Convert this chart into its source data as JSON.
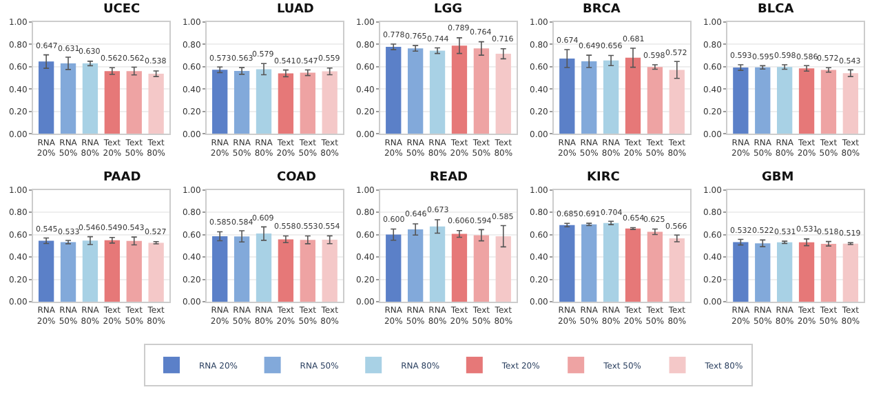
{
  "chart_data": [
    {
      "type": "bar",
      "title": "UCEC",
      "categories": [
        "RNA 20%",
        "RNA 50%",
        "RNA 80%",
        "Text 20%",
        "Text 50%",
        "Text 80%"
      ],
      "ylim": [
        0,
        1
      ],
      "yticks": [
        {
          "value": 0,
          "label": "0.00"
        },
        {
          "value": 0.2,
          "label": "0.20"
        },
        {
          "value": 0.4,
          "label": "0.40"
        },
        {
          "value": 0.6,
          "label": "0.60"
        },
        {
          "value": 0.8,
          "label": "0.80"
        },
        {
          "value": 1,
          "label": "1.00"
        }
      ],
      "grid": "y",
      "legend": "bottom",
      "series": [
        {
          "name": "RNA 20%",
          "color": "#5b80c8",
          "values": [
            0.647,
            null,
            null,
            null,
            null,
            null
          ],
          "errors": [
            0.06,
            null,
            null,
            null,
            null,
            null
          ],
          "value_labels": [
            "0.647",
            null,
            null,
            null,
            null,
            null
          ]
        },
        {
          "name": "RNA 50%",
          "color": "#82a9da",
          "values": [
            null,
            0.631,
            null,
            null,
            null,
            null
          ],
          "errors": [
            null,
            0.055,
            null,
            null,
            null,
            null
          ],
          "value_labels": [
            null,
            "0.631",
            null,
            null,
            null,
            null
          ]
        },
        {
          "name": "RNA 80%",
          "color": "#a8d1e5",
          "values": [
            null,
            null,
            0.63,
            null,
            null,
            null
          ],
          "errors": [
            null,
            null,
            0.02,
            null,
            null,
            null
          ],
          "value_labels": [
            null,
            null,
            "0.630",
            null,
            null,
            null
          ]
        },
        {
          "name": "Text 20%",
          "color": "#e67878",
          "values": [
            null,
            null,
            null,
            0.562,
            null,
            null
          ],
          "errors": [
            null,
            null,
            null,
            0.03,
            null,
            null
          ],
          "value_labels": [
            null,
            null,
            null,
            "0.562",
            null,
            null
          ]
        },
        {
          "name": "Text 50%",
          "color": "#eea3a3",
          "values": [
            null,
            null,
            null,
            null,
            0.562,
            null
          ],
          "errors": [
            null,
            null,
            null,
            null,
            0.035,
            null
          ],
          "value_labels": [
            null,
            null,
            null,
            null,
            "0.562",
            null
          ]
        },
        {
          "name": "Text 80%",
          "color": "#f4c8c8",
          "values": [
            null,
            null,
            null,
            null,
            null,
            0.538
          ],
          "errors": [
            null,
            null,
            null,
            null,
            null,
            0.025
          ],
          "value_labels": [
            null,
            null,
            null,
            null,
            null,
            "0.538"
          ]
        }
      ]
    },
    {
      "type": "bar",
      "title": "LUAD",
      "categories": [
        "RNA 20%",
        "RNA 50%",
        "RNA 80%",
        "Text 20%",
        "Text 50%",
        "Text 80%"
      ],
      "ylim": [
        0,
        1
      ],
      "yticks": [
        {
          "value": 0,
          "label": "0.00"
        },
        {
          "value": 0.2,
          "label": "0.20"
        },
        {
          "value": 0.4,
          "label": "0.40"
        },
        {
          "value": 0.6,
          "label": "0.60"
        },
        {
          "value": 0.8,
          "label": "0.80"
        },
        {
          "value": 1,
          "label": "1.00"
        }
      ],
      "grid": "y",
      "series": [
        {
          "color": "#5b80c8",
          "values": [
            0.573,
            null,
            null,
            null,
            null,
            null
          ],
          "errors": [
            0.025,
            null,
            null,
            null,
            null,
            null
          ],
          "value_labels": [
            "0.573",
            null,
            null,
            null,
            null,
            null
          ]
        },
        {
          "color": "#82a9da",
          "values": [
            null,
            0.563,
            null,
            null,
            null,
            null
          ],
          "errors": [
            null,
            0.03,
            null,
            null,
            null,
            null
          ],
          "value_labels": [
            null,
            "0.563",
            null,
            null,
            null,
            null
          ]
        },
        {
          "color": "#a8d1e5",
          "values": [
            null,
            null,
            0.579,
            null,
            null,
            null
          ],
          "errors": [
            null,
            null,
            0.05,
            null,
            null,
            null
          ],
          "value_labels": [
            null,
            null,
            "0.579",
            null,
            null,
            null
          ]
        },
        {
          "color": "#e67878",
          "values": [
            null,
            null,
            null,
            0.541,
            null,
            null
          ],
          "errors": [
            null,
            null,
            null,
            0.03,
            null,
            null
          ],
          "value_labels": [
            null,
            null,
            null,
            "0.541",
            null,
            null
          ]
        },
        {
          "color": "#eea3a3",
          "values": [
            null,
            null,
            null,
            null,
            0.547,
            null
          ],
          "errors": [
            null,
            null,
            null,
            null,
            0.025,
            null
          ],
          "value_labels": [
            null,
            null,
            null,
            null,
            "0.547",
            null
          ]
        },
        {
          "color": "#f4c8c8",
          "values": [
            null,
            null,
            null,
            null,
            null,
            0.559
          ],
          "errors": [
            null,
            null,
            null,
            null,
            null,
            0.03
          ],
          "value_labels": [
            null,
            null,
            null,
            null,
            null,
            "0.559"
          ]
        }
      ]
    },
    {
      "type": "bar",
      "title": "LGG",
      "categories": [
        "RNA 20%",
        "RNA 50%",
        "RNA 80%",
        "Text 20%",
        "Text 50%",
        "Text 80%"
      ],
      "ylim": [
        0,
        1
      ],
      "yticks": [
        {
          "value": 0,
          "label": "0.00"
        },
        {
          "value": 0.2,
          "label": "0.20"
        },
        {
          "value": 0.4,
          "label": "0.40"
        },
        {
          "value": 0.6,
          "label": "0.60"
        },
        {
          "value": 0.8,
          "label": "0.80"
        },
        {
          "value": 1,
          "label": "1.00"
        }
      ],
      "grid": "y",
      "series": [
        {
          "color": "#5b80c8",
          "values": [
            0.778,
            null,
            null,
            null,
            null,
            null
          ],
          "errors": [
            0.025,
            null,
            null,
            null,
            null,
            null
          ],
          "value_labels": [
            "0.778",
            null,
            null,
            null,
            null,
            null
          ]
        },
        {
          "color": "#82a9da",
          "values": [
            null,
            0.765,
            null,
            null,
            null,
            null
          ],
          "errors": [
            null,
            0.025,
            null,
            null,
            null,
            null
          ],
          "value_labels": [
            null,
            "0.765",
            null,
            null,
            null,
            null
          ]
        },
        {
          "color": "#a8d1e5",
          "values": [
            null,
            null,
            0.744,
            null,
            null,
            null
          ],
          "errors": [
            null,
            null,
            0.025,
            null,
            null,
            null
          ],
          "value_labels": [
            null,
            null,
            "0.744",
            null,
            null,
            null
          ]
        },
        {
          "color": "#e67878",
          "values": [
            null,
            null,
            null,
            0.789,
            null,
            null
          ],
          "errors": [
            null,
            null,
            null,
            0.07,
            null,
            null
          ],
          "value_labels": [
            null,
            null,
            null,
            "0.789",
            null,
            null
          ]
        },
        {
          "color": "#eea3a3",
          "values": [
            null,
            null,
            null,
            null,
            0.764,
            null
          ],
          "errors": [
            null,
            null,
            null,
            null,
            0.06,
            null
          ],
          "value_labels": [
            null,
            null,
            null,
            null,
            "0.764",
            null
          ]
        },
        {
          "color": "#f4c8c8",
          "values": [
            null,
            null,
            null,
            null,
            null,
            0.716
          ],
          "errors": [
            null,
            null,
            null,
            null,
            null,
            0.045
          ],
          "value_labels": [
            null,
            null,
            null,
            null,
            null,
            "0.716"
          ]
        }
      ]
    },
    {
      "type": "bar",
      "title": "BRCA",
      "categories": [
        "RNA 20%",
        "RNA 50%",
        "RNA 80%",
        "Text 20%",
        "Text 50%",
        "Text 80%"
      ],
      "ylim": [
        0,
        1
      ],
      "yticks": [
        {
          "value": 0,
          "label": "0.00"
        },
        {
          "value": 0.2,
          "label": "0.20"
        },
        {
          "value": 0.4,
          "label": "0.40"
        },
        {
          "value": 0.6,
          "label": "0.60"
        },
        {
          "value": 0.8,
          "label": "0.80"
        },
        {
          "value": 1,
          "label": "1.00"
        }
      ],
      "grid": "y",
      "series": [
        {
          "color": "#5b80c8",
          "values": [
            0.674,
            null,
            null,
            null,
            null,
            null
          ],
          "errors": [
            0.08,
            null,
            null,
            null,
            null,
            null
          ],
          "value_labels": [
            "0.674",
            null,
            null,
            null,
            null,
            null
          ]
        },
        {
          "color": "#82a9da",
          "values": [
            null,
            0.649,
            null,
            null,
            null,
            null
          ],
          "errors": [
            null,
            0.055,
            null,
            null,
            null,
            null
          ],
          "value_labels": [
            null,
            "0.649",
            null,
            null,
            null,
            null
          ]
        },
        {
          "color": "#a8d1e5",
          "values": [
            null,
            null,
            0.656,
            null,
            null,
            null
          ],
          "errors": [
            null,
            null,
            0.045,
            null,
            null,
            null
          ],
          "value_labels": [
            null,
            null,
            "0.656",
            null,
            null,
            null
          ]
        },
        {
          "color": "#e67878",
          "values": [
            null,
            null,
            null,
            0.681,
            null,
            null
          ],
          "errors": [
            null,
            null,
            null,
            0.085,
            null,
            null
          ],
          "value_labels": [
            null,
            null,
            null,
            "0.681",
            null,
            null
          ]
        },
        {
          "color": "#eea3a3",
          "values": [
            null,
            null,
            null,
            null,
            0.598,
            null
          ],
          "errors": [
            null,
            null,
            null,
            null,
            0.02,
            null
          ],
          "value_labels": [
            null,
            null,
            null,
            null,
            "0.598",
            null
          ]
        },
        {
          "color": "#f4c8c8",
          "values": [
            null,
            null,
            null,
            null,
            null,
            0.572
          ],
          "errors": [
            null,
            null,
            null,
            null,
            null,
            0.075
          ],
          "value_labels": [
            null,
            null,
            null,
            null,
            null,
            "0.572"
          ]
        }
      ]
    },
    {
      "type": "bar",
      "title": "BLCA",
      "categories": [
        "RNA 20%",
        "RNA 50%",
        "RNA 80%",
        "Text 20%",
        "Text 50%",
        "Text 80%"
      ],
      "ylim": [
        0,
        1
      ],
      "yticks": [
        {
          "value": 0,
          "label": "0.00"
        },
        {
          "value": 0.2,
          "label": "0.20"
        },
        {
          "value": 0.4,
          "label": "0.40"
        },
        {
          "value": 0.6,
          "label": "0.60"
        },
        {
          "value": 0.8,
          "label": "0.80"
        },
        {
          "value": 1,
          "label": "1.00"
        }
      ],
      "grid": "y",
      "series": [
        {
          "color": "#5b80c8",
          "values": [
            0.593,
            null,
            null,
            null,
            null,
            null
          ],
          "errors": [
            0.025,
            null,
            null,
            null,
            null,
            null
          ],
          "value_labels": [
            "0.593",
            null,
            null,
            null,
            null,
            null
          ]
        },
        {
          "color": "#82a9da",
          "values": [
            null,
            0.595,
            null,
            null,
            null,
            null
          ],
          "errors": [
            null,
            0.015,
            null,
            null,
            null,
            null
          ],
          "value_labels": [
            null,
            "0.595",
            null,
            null,
            null,
            null
          ]
        },
        {
          "color": "#a8d1e5",
          "values": [
            null,
            null,
            0.598,
            null,
            null,
            null
          ],
          "errors": [
            null,
            null,
            0.02,
            null,
            null,
            null
          ],
          "value_labels": [
            null,
            null,
            "0.598",
            null,
            null,
            null
          ]
        },
        {
          "color": "#e67878",
          "values": [
            null,
            null,
            null,
            0.586,
            null,
            null
          ],
          "errors": [
            null,
            null,
            null,
            0.025,
            null,
            null
          ],
          "value_labels": [
            null,
            null,
            null,
            "0.586",
            null,
            null
          ]
        },
        {
          "color": "#eea3a3",
          "values": [
            null,
            null,
            null,
            null,
            0.572,
            null
          ],
          "errors": [
            null,
            null,
            null,
            null,
            0.02,
            null
          ],
          "value_labels": [
            null,
            null,
            null,
            null,
            "0.572",
            null
          ]
        },
        {
          "color": "#f4c8c8",
          "values": [
            null,
            null,
            null,
            null,
            null,
            0.543
          ],
          "errors": [
            null,
            null,
            null,
            null,
            null,
            0.03
          ],
          "value_labels": [
            null,
            null,
            null,
            null,
            null,
            "0.543"
          ]
        }
      ]
    },
    {
      "type": "bar",
      "title": "PAAD",
      "categories": [
        "RNA 20%",
        "RNA 50%",
        "RNA 80%",
        "Text 20%",
        "Text 50%",
        "Text 80%"
      ],
      "ylim": [
        0,
        1
      ],
      "yticks": [
        {
          "value": 0,
          "label": "0.00"
        },
        {
          "value": 0.2,
          "label": "0.20"
        },
        {
          "value": 0.4,
          "label": "0.40"
        },
        {
          "value": 0.6,
          "label": "0.60"
        },
        {
          "value": 0.8,
          "label": "0.80"
        },
        {
          "value": 1,
          "label": "1.00"
        }
      ],
      "grid": "y",
      "series": [
        {
          "color": "#5b80c8",
          "values": [
            0.545,
            null,
            null,
            null,
            null,
            null
          ],
          "errors": [
            0.025,
            null,
            null,
            null,
            null,
            null
          ],
          "value_labels": [
            "0.545",
            null,
            null,
            null,
            null,
            null
          ]
        },
        {
          "color": "#82a9da",
          "values": [
            null,
            0.533,
            null,
            null,
            null,
            null
          ],
          "errors": [
            null,
            0.015,
            null,
            null,
            null,
            null
          ],
          "value_labels": [
            null,
            "0.533",
            null,
            null,
            null,
            null
          ]
        },
        {
          "color": "#a8d1e5",
          "values": [
            null,
            null,
            0.546,
            null,
            null,
            null
          ],
          "errors": [
            null,
            null,
            0.035,
            null,
            null,
            null
          ],
          "value_labels": [
            null,
            null,
            "0.546",
            null,
            null,
            null
          ]
        },
        {
          "color": "#e67878",
          "values": [
            null,
            null,
            null,
            0.549,
            null,
            null
          ],
          "errors": [
            null,
            null,
            null,
            0.025,
            null,
            null
          ],
          "value_labels": [
            null,
            null,
            null,
            "0.549",
            null,
            null
          ]
        },
        {
          "color": "#eea3a3",
          "values": [
            null,
            null,
            null,
            null,
            0.543,
            null
          ],
          "errors": [
            null,
            null,
            null,
            null,
            0.035,
            null
          ],
          "value_labels": [
            null,
            null,
            null,
            null,
            "0.543",
            null
          ]
        },
        {
          "color": "#f4c8c8",
          "values": [
            null,
            null,
            null,
            null,
            null,
            0.527
          ],
          "errors": [
            null,
            null,
            null,
            null,
            null,
            0.01
          ],
          "value_labels": [
            null,
            null,
            null,
            null,
            null,
            "0.527"
          ]
        }
      ]
    },
    {
      "type": "bar",
      "title": "COAD",
      "categories": [
        "RNA 20%",
        "RNA 50%",
        "RNA 80%",
        "Text 20%",
        "Text 50%",
        "Text 80%"
      ],
      "ylim": [
        0,
        1
      ],
      "yticks": [
        {
          "value": 0,
          "label": "0.00"
        },
        {
          "value": 0.2,
          "label": "0.20"
        },
        {
          "value": 0.4,
          "label": "0.40"
        },
        {
          "value": 0.6,
          "label": "0.60"
        },
        {
          "value": 0.8,
          "label": "0.80"
        },
        {
          "value": 1,
          "label": "1.00"
        }
      ],
      "grid": "y",
      "series": [
        {
          "color": "#5b80c8",
          "values": [
            0.585,
            null,
            null,
            null,
            null,
            null
          ],
          "errors": [
            0.04,
            null,
            null,
            null,
            null,
            null
          ],
          "value_labels": [
            "0.585",
            null,
            null,
            null,
            null,
            null
          ]
        },
        {
          "color": "#82a9da",
          "values": [
            null,
            0.584,
            null,
            null,
            null,
            null
          ],
          "errors": [
            null,
            0.05,
            null,
            null,
            null,
            null
          ],
          "value_labels": [
            null,
            "0.584",
            null,
            null,
            null,
            null
          ]
        },
        {
          "color": "#a8d1e5",
          "values": [
            null,
            null,
            0.609,
            null,
            null,
            null
          ],
          "errors": [
            null,
            null,
            0.06,
            null,
            null,
            null
          ],
          "value_labels": [
            null,
            null,
            "0.609",
            null,
            null,
            null
          ]
        },
        {
          "color": "#e67878",
          "values": [
            null,
            null,
            null,
            0.558,
            null,
            null
          ],
          "errors": [
            null,
            null,
            null,
            0.03,
            null,
            null
          ],
          "value_labels": [
            null,
            null,
            null,
            "0.558",
            null,
            null
          ]
        },
        {
          "color": "#eea3a3",
          "values": [
            null,
            null,
            null,
            null,
            0.553,
            null
          ],
          "errors": [
            null,
            null,
            null,
            null,
            0.035,
            null
          ],
          "value_labels": [
            null,
            null,
            null,
            null,
            "0.553",
            null
          ]
        },
        {
          "color": "#f4c8c8",
          "values": [
            null,
            null,
            null,
            null,
            null,
            0.554
          ],
          "errors": [
            null,
            null,
            null,
            null,
            null,
            0.035
          ],
          "value_labels": [
            null,
            null,
            null,
            null,
            null,
            "0.554"
          ]
        }
      ]
    },
    {
      "type": "bar",
      "title": "READ",
      "categories": [
        "RNA 20%",
        "RNA 50%",
        "RNA 80%",
        "Text 20%",
        "Text 50%",
        "Text 80%"
      ],
      "ylim": [
        0,
        1
      ],
      "yticks": [
        {
          "value": 0,
          "label": "0.00"
        },
        {
          "value": 0.2,
          "label": "0.20"
        },
        {
          "value": 0.4,
          "label": "0.40"
        },
        {
          "value": 0.6,
          "label": "0.60"
        },
        {
          "value": 0.8,
          "label": "0.80"
        },
        {
          "value": 1,
          "label": "1.00"
        }
      ],
      "grid": "y",
      "series": [
        {
          "color": "#5b80c8",
          "values": [
            0.6,
            null,
            null,
            null,
            null,
            null
          ],
          "errors": [
            0.05,
            null,
            null,
            null,
            null,
            null
          ],
          "value_labels": [
            "0.600",
            null,
            null,
            null,
            null,
            null
          ]
        },
        {
          "color": "#82a9da",
          "values": [
            null,
            0.646,
            null,
            null,
            null,
            null
          ],
          "errors": [
            null,
            0.05,
            null,
            null,
            null,
            null
          ],
          "value_labels": [
            null,
            "0.646",
            null,
            null,
            null,
            null
          ]
        },
        {
          "color": "#a8d1e5",
          "values": [
            null,
            null,
            0.673,
            null,
            null,
            null
          ],
          "errors": [
            null,
            null,
            0.06,
            null,
            null,
            null
          ],
          "value_labels": [
            null,
            null,
            "0.673",
            null,
            null,
            null
          ]
        },
        {
          "color": "#e67878",
          "values": [
            null,
            null,
            null,
            0.606,
            null,
            null
          ],
          "errors": [
            null,
            null,
            null,
            0.03,
            null,
            null
          ],
          "value_labels": [
            null,
            null,
            null,
            "0.606",
            null,
            null
          ]
        },
        {
          "color": "#eea3a3",
          "values": [
            null,
            null,
            null,
            null,
            0.594,
            null
          ],
          "errors": [
            null,
            null,
            null,
            null,
            0.05,
            null
          ],
          "value_labels": [
            null,
            null,
            null,
            null,
            "0.594",
            null
          ]
        },
        {
          "color": "#f4c8c8",
          "values": [
            null,
            null,
            null,
            null,
            null,
            0.585
          ],
          "errors": [
            null,
            null,
            null,
            null,
            null,
            0.095
          ],
          "value_labels": [
            null,
            null,
            null,
            null,
            null,
            "0.585"
          ]
        }
      ]
    },
    {
      "type": "bar",
      "title": "KIRC",
      "categories": [
        "RNA 20%",
        "RNA 50%",
        "RNA 80%",
        "Text 20%",
        "Text 50%",
        "Text 80%"
      ],
      "ylim": [
        0,
        1
      ],
      "yticks": [
        {
          "value": 0,
          "label": "0.00"
        },
        {
          "value": 0.2,
          "label": "0.20"
        },
        {
          "value": 0.4,
          "label": "0.40"
        },
        {
          "value": 0.6,
          "label": "0.60"
        },
        {
          "value": 0.8,
          "label": "0.80"
        },
        {
          "value": 1,
          "label": "1.00"
        }
      ],
      "grid": "y",
      "series": [
        {
          "color": "#5b80c8",
          "values": [
            0.685,
            null,
            null,
            null,
            null,
            null
          ],
          "errors": [
            0.015,
            null,
            null,
            null,
            null,
            null
          ],
          "value_labels": [
            "0.685",
            null,
            null,
            null,
            null,
            null
          ]
        },
        {
          "color": "#82a9da",
          "values": [
            null,
            0.691,
            null,
            null,
            null,
            null
          ],
          "errors": [
            null,
            0.01,
            null,
            null,
            null,
            null
          ],
          "value_labels": [
            null,
            "0.691",
            null,
            null,
            null,
            null
          ]
        },
        {
          "color": "#a8d1e5",
          "values": [
            null,
            null,
            0.704,
            null,
            null,
            null
          ],
          "errors": [
            null,
            null,
            0.015,
            null,
            null,
            null
          ],
          "value_labels": [
            null,
            null,
            "0.704",
            null,
            null,
            null
          ]
        },
        {
          "color": "#e67878",
          "values": [
            null,
            null,
            null,
            0.654,
            null,
            null
          ],
          "errors": [
            null,
            null,
            null,
            0.008,
            null,
            null
          ],
          "value_labels": [
            null,
            null,
            null,
            "0.654",
            null,
            null
          ]
        },
        {
          "color": "#eea3a3",
          "values": [
            null,
            null,
            null,
            null,
            0.625,
            null
          ],
          "errors": [
            null,
            null,
            null,
            null,
            0.025,
            null
          ],
          "value_labels": [
            null,
            null,
            null,
            null,
            "0.625",
            null
          ]
        },
        {
          "color": "#f4c8c8",
          "values": [
            null,
            null,
            null,
            null,
            null,
            0.566
          ],
          "errors": [
            null,
            null,
            null,
            null,
            null,
            0.03
          ],
          "value_labels": [
            null,
            null,
            null,
            null,
            null,
            "0.566"
          ]
        }
      ]
    },
    {
      "type": "bar",
      "title": "GBM",
      "categories": [
        "RNA 20%",
        "RNA 50%",
        "RNA 80%",
        "Text 20%",
        "Text 50%",
        "Text 80%"
      ],
      "ylim": [
        0,
        1
      ],
      "yticks": [
        {
          "value": 0,
          "label": "0.00"
        },
        {
          "value": 0.2,
          "label": "0.20"
        },
        {
          "value": 0.4,
          "label": "0.40"
        },
        {
          "value": 0.6,
          "label": "0.60"
        },
        {
          "value": 0.8,
          "label": "0.80"
        },
        {
          "value": 1,
          "label": "1.00"
        }
      ],
      "grid": "y",
      "series": [
        {
          "color": "#5b80c8",
          "values": [
            0.532,
            null,
            null,
            null,
            null,
            null
          ],
          "errors": [
            0.025,
            null,
            null,
            null,
            null,
            null
          ],
          "value_labels": [
            "0.532",
            null,
            null,
            null,
            null,
            null
          ]
        },
        {
          "color": "#82a9da",
          "values": [
            null,
            0.522,
            null,
            null,
            null,
            null
          ],
          "errors": [
            null,
            0.03,
            null,
            null,
            null,
            null
          ],
          "value_labels": [
            null,
            "0.522",
            null,
            null,
            null,
            null
          ]
        },
        {
          "color": "#a8d1e5",
          "values": [
            null,
            null,
            0.531,
            null,
            null,
            null
          ],
          "errors": [
            null,
            null,
            0.01,
            null,
            null,
            null
          ],
          "value_labels": [
            null,
            null,
            "0.531",
            null,
            null,
            null
          ]
        },
        {
          "color": "#e67878",
          "values": [
            null,
            null,
            null,
            0.531,
            null,
            null
          ],
          "errors": [
            null,
            null,
            null,
            0.03,
            null,
            null
          ],
          "value_labels": [
            null,
            null,
            null,
            "0.531",
            null,
            null
          ]
        },
        {
          "color": "#eea3a3",
          "values": [
            null,
            null,
            null,
            null,
            0.518,
            null
          ],
          "errors": [
            null,
            null,
            null,
            null,
            0.02,
            null
          ],
          "value_labels": [
            null,
            null,
            null,
            null,
            "0.518",
            null
          ]
        },
        {
          "color": "#f4c8c8",
          "values": [
            null,
            null,
            null,
            null,
            null,
            0.519
          ],
          "errors": [
            null,
            null,
            null,
            null,
            null,
            0.008
          ],
          "value_labels": [
            null,
            null,
            null,
            null,
            null,
            "0.519"
          ]
        }
      ]
    }
  ]
}
